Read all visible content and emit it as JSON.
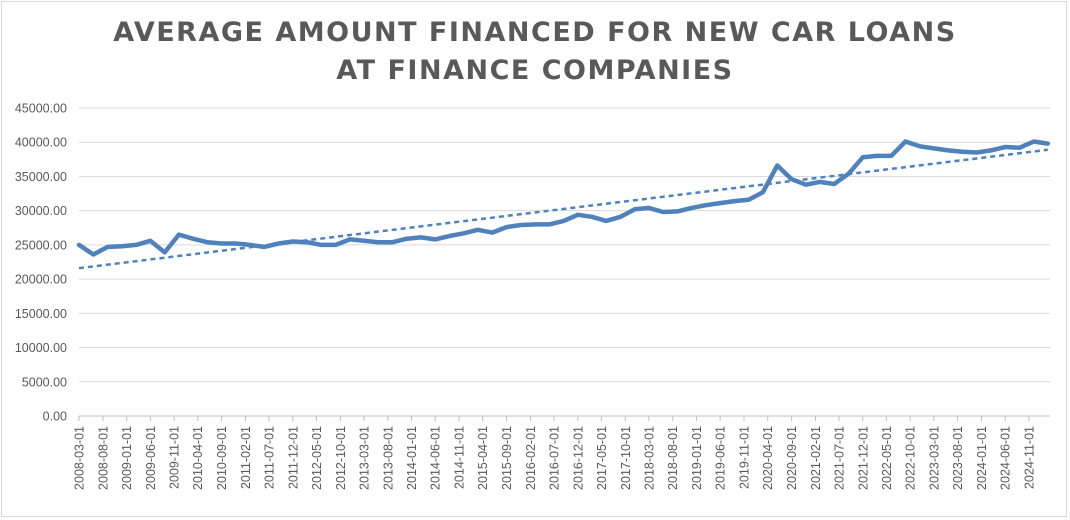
{
  "chart_data": {
    "type": "line",
    "title_line1": "AVERAGE AMOUNT FINANCED FOR NEW CAR LOANS",
    "title_line2": "AT FINANCE COMPANIES",
    "xlabel": "",
    "ylabel": "",
    "ylim": [
      0,
      45000
    ],
    "y_ticks": [
      "0.00",
      "5000.00",
      "10000.00",
      "15000.00",
      "20000.00",
      "25000.00",
      "30000.00",
      "35000.00",
      "40000.00",
      "45000.00"
    ],
    "x_tick_labels": [
      "2008-03-01",
      "2008-08-01",
      "2009-01-01",
      "2009-06-01",
      "2009-11-01",
      "2010-04-01",
      "2010-09-01",
      "2011-02-01",
      "2011-07-01",
      "2011-12-01",
      "2012-05-01",
      "2012-10-01",
      "2013-03-01",
      "2013-08-01",
      "2014-01-01",
      "2014-06-01",
      "2014-11-01",
      "2015-04-01",
      "2015-09-01",
      "2016-02-01",
      "2016-07-01",
      "2016-12-01",
      "2017-05-01",
      "2017-10-01",
      "2018-03-01",
      "2018-08-01",
      "2019-01-01",
      "2019-06-01",
      "2019-11-01",
      "2020-04-01",
      "2020-09-01",
      "2021-02-01",
      "2021-07-01",
      "2021-12-01",
      "2022-05-01",
      "2022-10-01",
      "2023-03-01",
      "2023-08-01",
      "2024-01-01",
      "2024-06-01",
      "2024-11-01"
    ],
    "grid": "horizontal",
    "series": [
      {
        "type": "line",
        "color": "#4f81bd",
        "x": [
          "2008-03-01",
          "2008-06-01",
          "2008-09-01",
          "2008-12-01",
          "2009-03-01",
          "2009-06-01",
          "2009-09-01",
          "2009-12-01",
          "2010-03-01",
          "2010-06-01",
          "2010-09-01",
          "2010-12-01",
          "2011-03-01",
          "2011-06-01",
          "2011-09-01",
          "2011-12-01",
          "2012-03-01",
          "2012-06-01",
          "2012-09-01",
          "2012-12-01",
          "2013-03-01",
          "2013-06-01",
          "2013-09-01",
          "2013-12-01",
          "2014-03-01",
          "2014-06-01",
          "2014-09-01",
          "2014-12-01",
          "2015-03-01",
          "2015-06-01",
          "2015-09-01",
          "2015-12-01",
          "2016-03-01",
          "2016-06-01",
          "2016-09-01",
          "2016-12-01",
          "2017-03-01",
          "2017-06-01",
          "2017-09-01",
          "2017-12-01",
          "2018-03-01",
          "2018-06-01",
          "2018-09-01",
          "2018-12-01",
          "2019-03-01",
          "2019-06-01",
          "2019-09-01",
          "2019-12-01",
          "2020-03-01",
          "2020-06-01",
          "2020-09-01",
          "2020-12-01",
          "2021-03-01",
          "2021-06-01",
          "2021-09-01",
          "2021-12-01",
          "2022-03-01",
          "2022-06-01",
          "2022-09-01",
          "2022-12-01",
          "2023-03-01",
          "2023-06-01",
          "2023-09-01",
          "2023-12-01",
          "2024-03-01",
          "2024-06-01",
          "2024-09-01",
          "2024-12-01",
          "2025-03-01"
        ],
        "y": [
          25000,
          23600,
          24700,
          24800,
          25000,
          25600,
          23900,
          26500,
          25900,
          25400,
          25200,
          25200,
          25000,
          24700,
          25200,
          25500,
          25400,
          25000,
          25000,
          25800,
          25600,
          25400,
          25400,
          25900,
          26100,
          25800,
          26300,
          26700,
          27200,
          26800,
          27600,
          27900,
          28000,
          28000,
          28500,
          29400,
          29100,
          28500,
          29100,
          30200,
          30400,
          29800,
          29900,
          30400,
          30800,
          31100,
          31400,
          31600,
          32700,
          36600,
          34600,
          33800,
          34200,
          33900,
          35400,
          37800,
          38000,
          38000,
          40100,
          39400,
          39100,
          38800,
          38600,
          38500,
          38800,
          39300,
          39200,
          40100,
          39800
        ]
      },
      {
        "type": "linear-trendline",
        "color": "#4f81bd",
        "style": "dashed",
        "start": {
          "x": "2008-03-01",
          "y": 21600
        },
        "end": {
          "x": "2025-03-01",
          "y": 38900
        }
      }
    ]
  }
}
